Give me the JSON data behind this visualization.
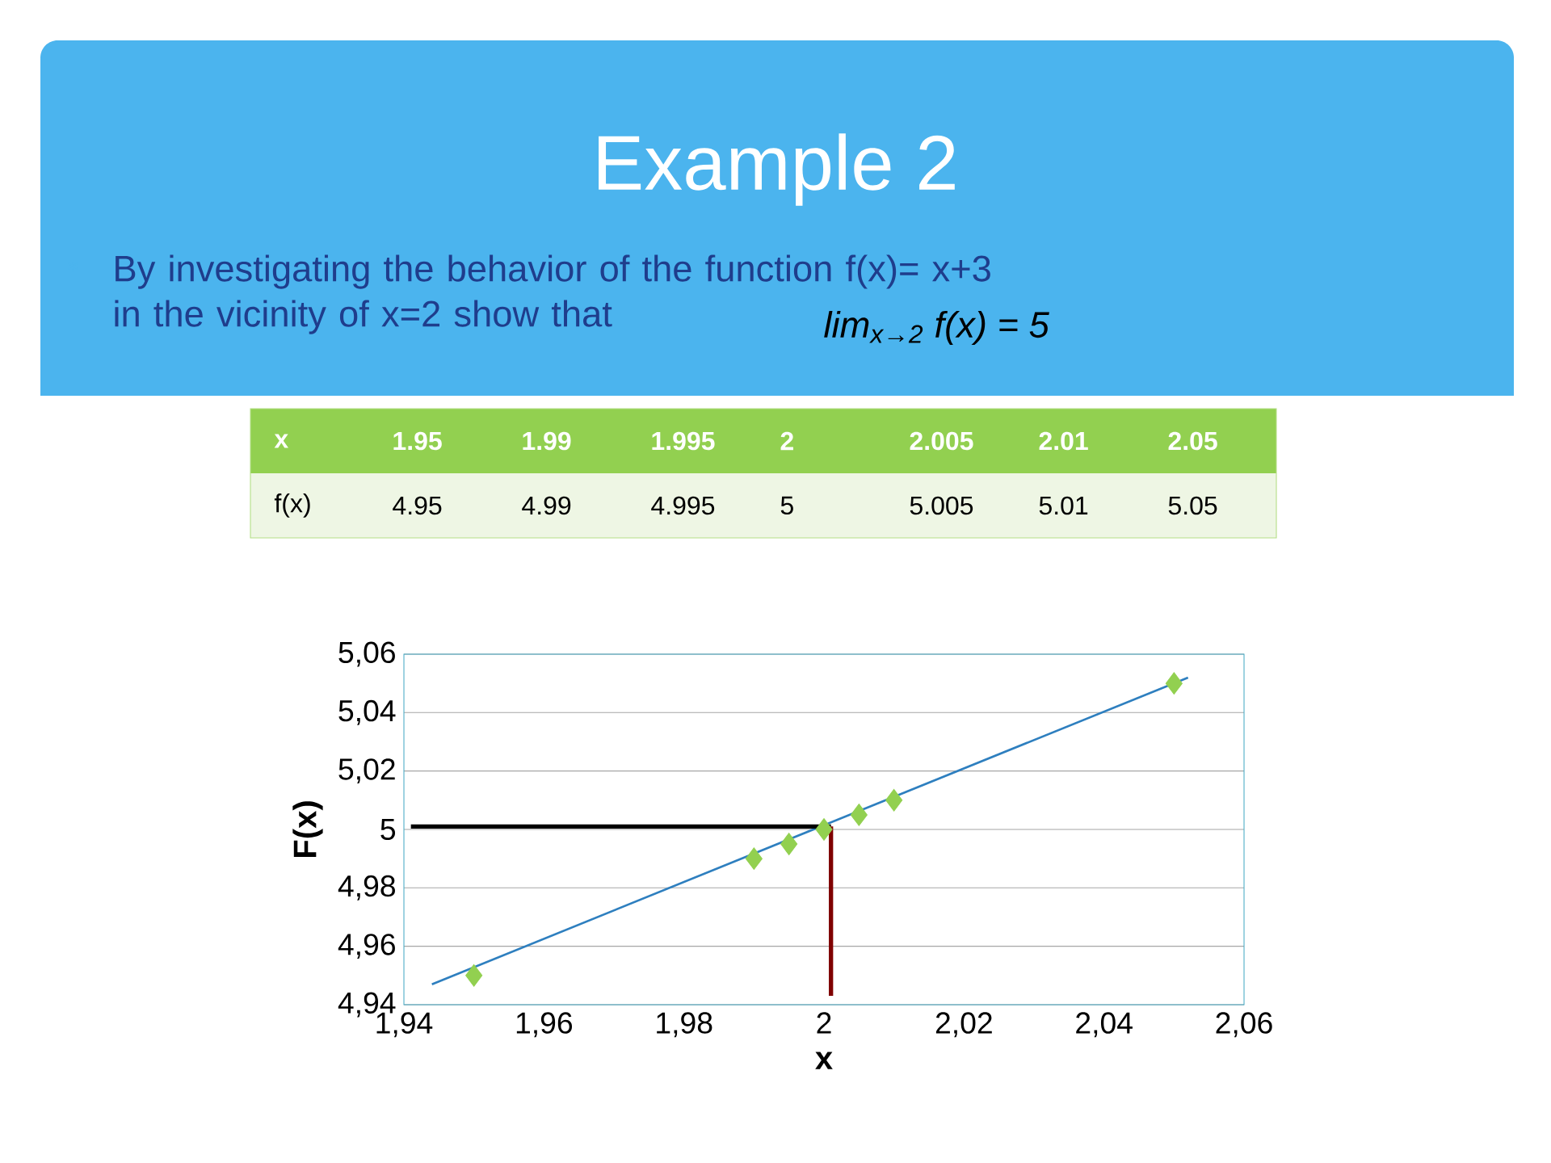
{
  "chart_data": {
    "type": "scatter",
    "title": "Example 2",
    "annotations": [
      "By investigating the behavior of the function f(x)= x+3 in the vicinity of x=2 show that",
      "lim$_{x→2}$ f(x) = 5",
      "x",
      "1.95",
      "1.99",
      "1.995",
      "2",
      "2.005",
      "2.01",
      "2.05",
      "f(x)",
      "4.95",
      "4.99",
      "4.995",
      "5",
      "5.005",
      "5.01",
      "5.05"
    ],
    "xlabel": "x",
    "ylabel": "F(x)",
    "xlim": [
      1.94,
      2.06
    ],
    "xticks": [
      {
        "value": 1.94,
        "label": "1,94"
      },
      {
        "value": 1.96,
        "label": "1,96"
      },
      {
        "value": 1.98,
        "label": "1,98"
      },
      2,
      {
        "value": 2.02,
        "label": "2,02"
      },
      {
        "value": 2.04,
        "label": "2,04"
      },
      {
        "value": 2.06,
        "label": "2,06"
      }
    ],
    "ylim": [
      4.94,
      5.06
    ],
    "yticks": [
      {
        "value": 4.94,
        "label": "4,94"
      },
      {
        "value": 4.96,
        "label": "4,96"
      },
      {
        "value": 4.98,
        "label": "4,98"
      },
      5,
      {
        "value": 5.02,
        "label": "5,02"
      },
      {
        "value": 5.04,
        "label": "5,04"
      },
      {
        "value": 5.06,
        "label": "5,06"
      }
    ],
    "grid": "y",
    "marker": "diamond",
    "series": [
      {
        "color": "#92d050",
        "x": [
          1.95,
          1.99,
          1.995,
          2,
          2.005,
          2.01,
          2.05
        ],
        "values": [
          4.95,
          4.99,
          4.995,
          5,
          5.005,
          5.01,
          5.05
        ]
      },
      {
        "type": "line",
        "marker": "none",
        "color": "#2e7fbf",
        "x": [
          1.944,
          2.052
        ],
        "values": [
          4.947,
          5.052
        ]
      },
      {
        "type": "line",
        "marker": "none",
        "color": "#000000",
        "x": [
          1.941,
          2.001
        ],
        "values": [
          5.001,
          5.001
        ]
      },
      {
        "type": "line",
        "marker": "none",
        "color": "#800000",
        "x": [
          2.001,
          2.001
        ],
        "values": [
          4.943,
          5.001
        ]
      }
    ]
  }
}
